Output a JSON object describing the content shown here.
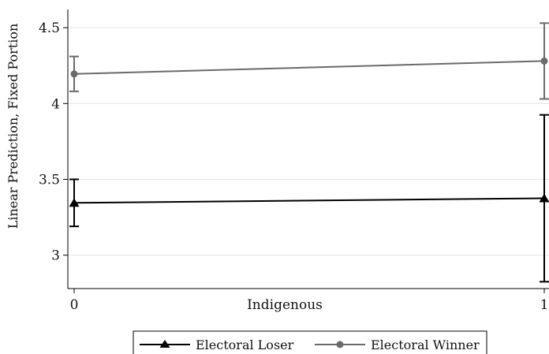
{
  "chart_data": {
    "type": "line",
    "title": "",
    "xlabel": "Indigenous",
    "ylabel": "Linear Prediction, Fixed Portion",
    "x": [
      0,
      1
    ],
    "x_ticks": [
      "0",
      "1"
    ],
    "y_ticks": [
      "3",
      "3.5",
      "4",
      "4.5"
    ],
    "xlim": [
      0,
      1
    ],
    "ylim": [
      2.78,
      4.62
    ],
    "grid": true,
    "legend_position": "bottom",
    "series": [
      {
        "name": "Electoral Loser",
        "marker": "triangle",
        "color": "#000000",
        "values": [
          3.345,
          3.375
        ],
        "ci_low": [
          3.19,
          2.825
        ],
        "ci_high": [
          3.5,
          3.925
        ]
      },
      {
        "name": "Electoral Winner",
        "marker": "circle",
        "color": "#6b6b6b",
        "values": [
          4.195,
          4.28
        ],
        "ci_low": [
          4.08,
          4.03
        ],
        "ci_high": [
          4.31,
          4.53
        ]
      }
    ]
  }
}
